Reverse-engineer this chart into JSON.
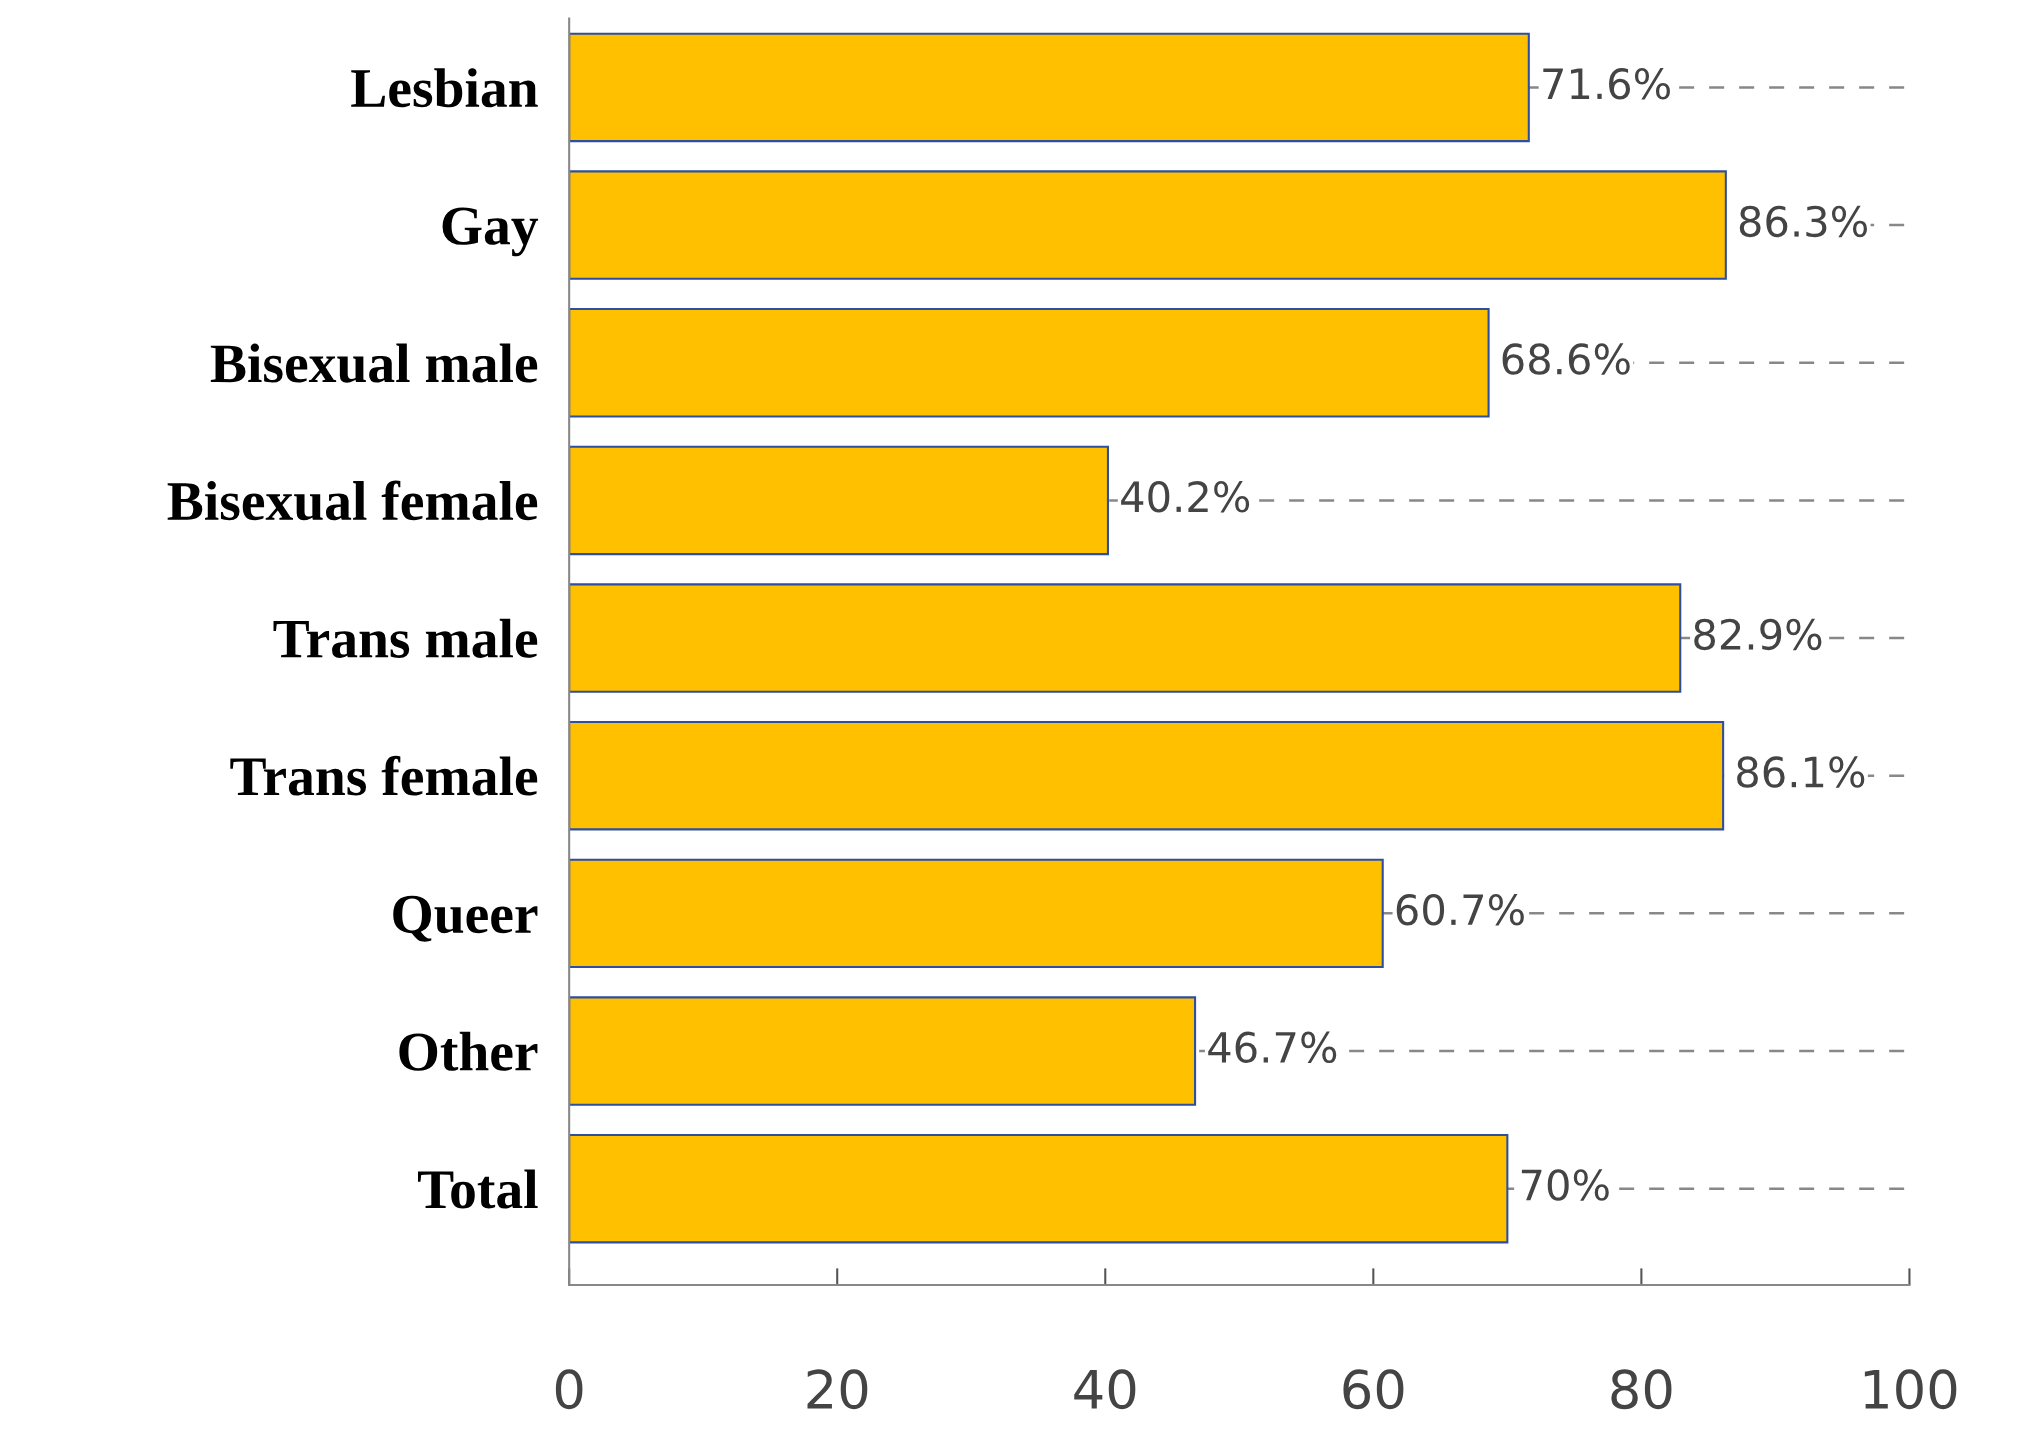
{
  "chart_data": {
    "type": "bar",
    "orientation": "horizontal",
    "categories": [
      "Lesbian",
      "Gay",
      "Bisexual male",
      "Bisexual female",
      "Trans male",
      "Trans female",
      "Queer",
      "Other",
      "Total"
    ],
    "values": [
      71.6,
      86.3,
      68.6,
      40.2,
      82.9,
      86.1,
      60.7,
      46.7,
      70
    ],
    "value_labels": [
      "71.6%",
      "86.3%",
      "68.6%",
      "40.2%",
      "82.9%",
      "86.1%",
      "60.7%",
      "46.7%",
      "70%"
    ],
    "color": "#ffc000",
    "xlim": [
      0,
      100
    ],
    "xticks": [
      0,
      20,
      40,
      60,
      80,
      100
    ],
    "grid": "y"
  }
}
